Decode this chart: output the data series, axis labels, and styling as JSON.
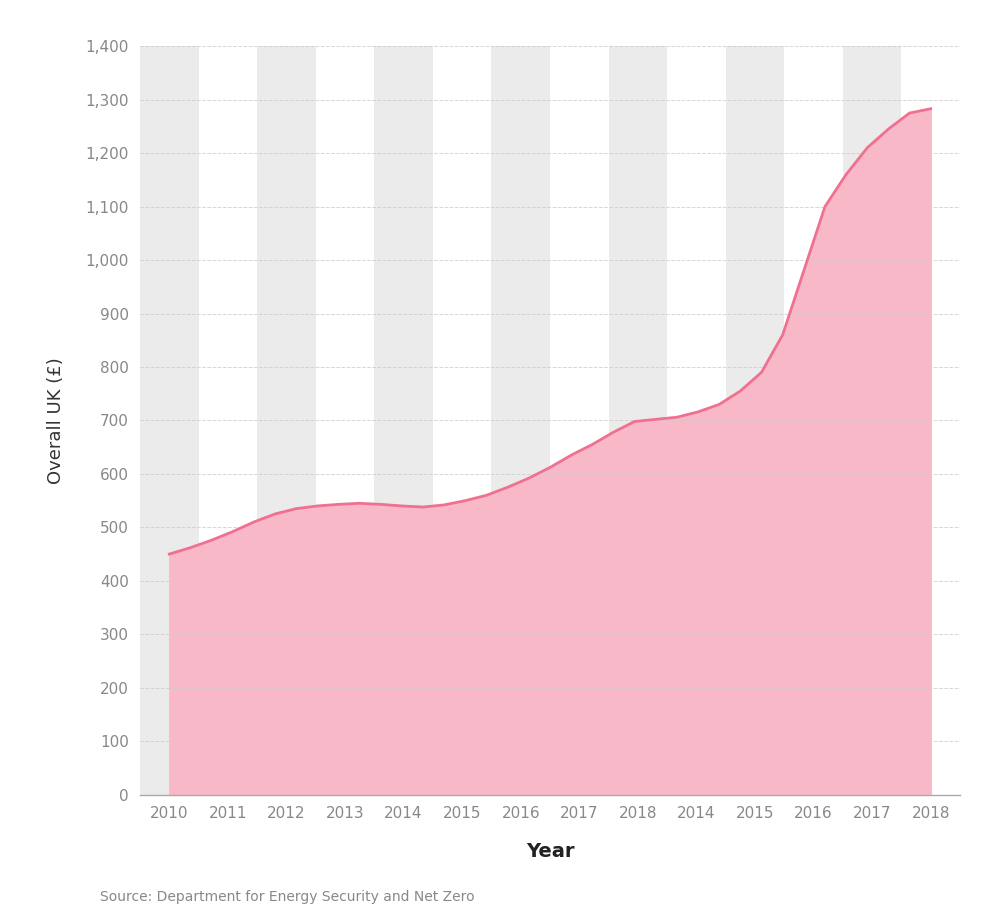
{
  "x_labels": [
    "2010",
    "2011",
    "2012",
    "2013",
    "2014",
    "2015",
    "2016",
    "2017",
    "2018",
    "2014",
    "2015",
    "2016",
    "2017",
    "2018"
  ],
  "y_data": [
    450,
    462,
    476,
    492,
    510,
    525,
    535,
    540,
    543,
    545,
    543,
    540,
    538,
    542,
    550,
    560,
    575,
    592,
    612,
    635,
    655,
    678,
    698,
    702,
    706,
    716,
    730,
    755,
    790,
    860,
    980,
    1100,
    1160,
    1210,
    1245,
    1275,
    1283
  ],
  "n_ticks": 14,
  "ylabel": "Overall UK (£)",
  "xlabel": "Year",
  "source": "Source: Department for Energy Security and Net Zero",
  "ylim": [
    0,
    1400
  ],
  "yticks": [
    0,
    100,
    200,
    300,
    400,
    500,
    600,
    700,
    800,
    900,
    1000,
    1100,
    1200,
    1300,
    1400
  ],
  "line_color": "#f07090",
  "fill_color": "#f9b8c8",
  "background_color": "#ffffff",
  "stripe_color": "#ebebeb",
  "grid_color": "#cccccc"
}
